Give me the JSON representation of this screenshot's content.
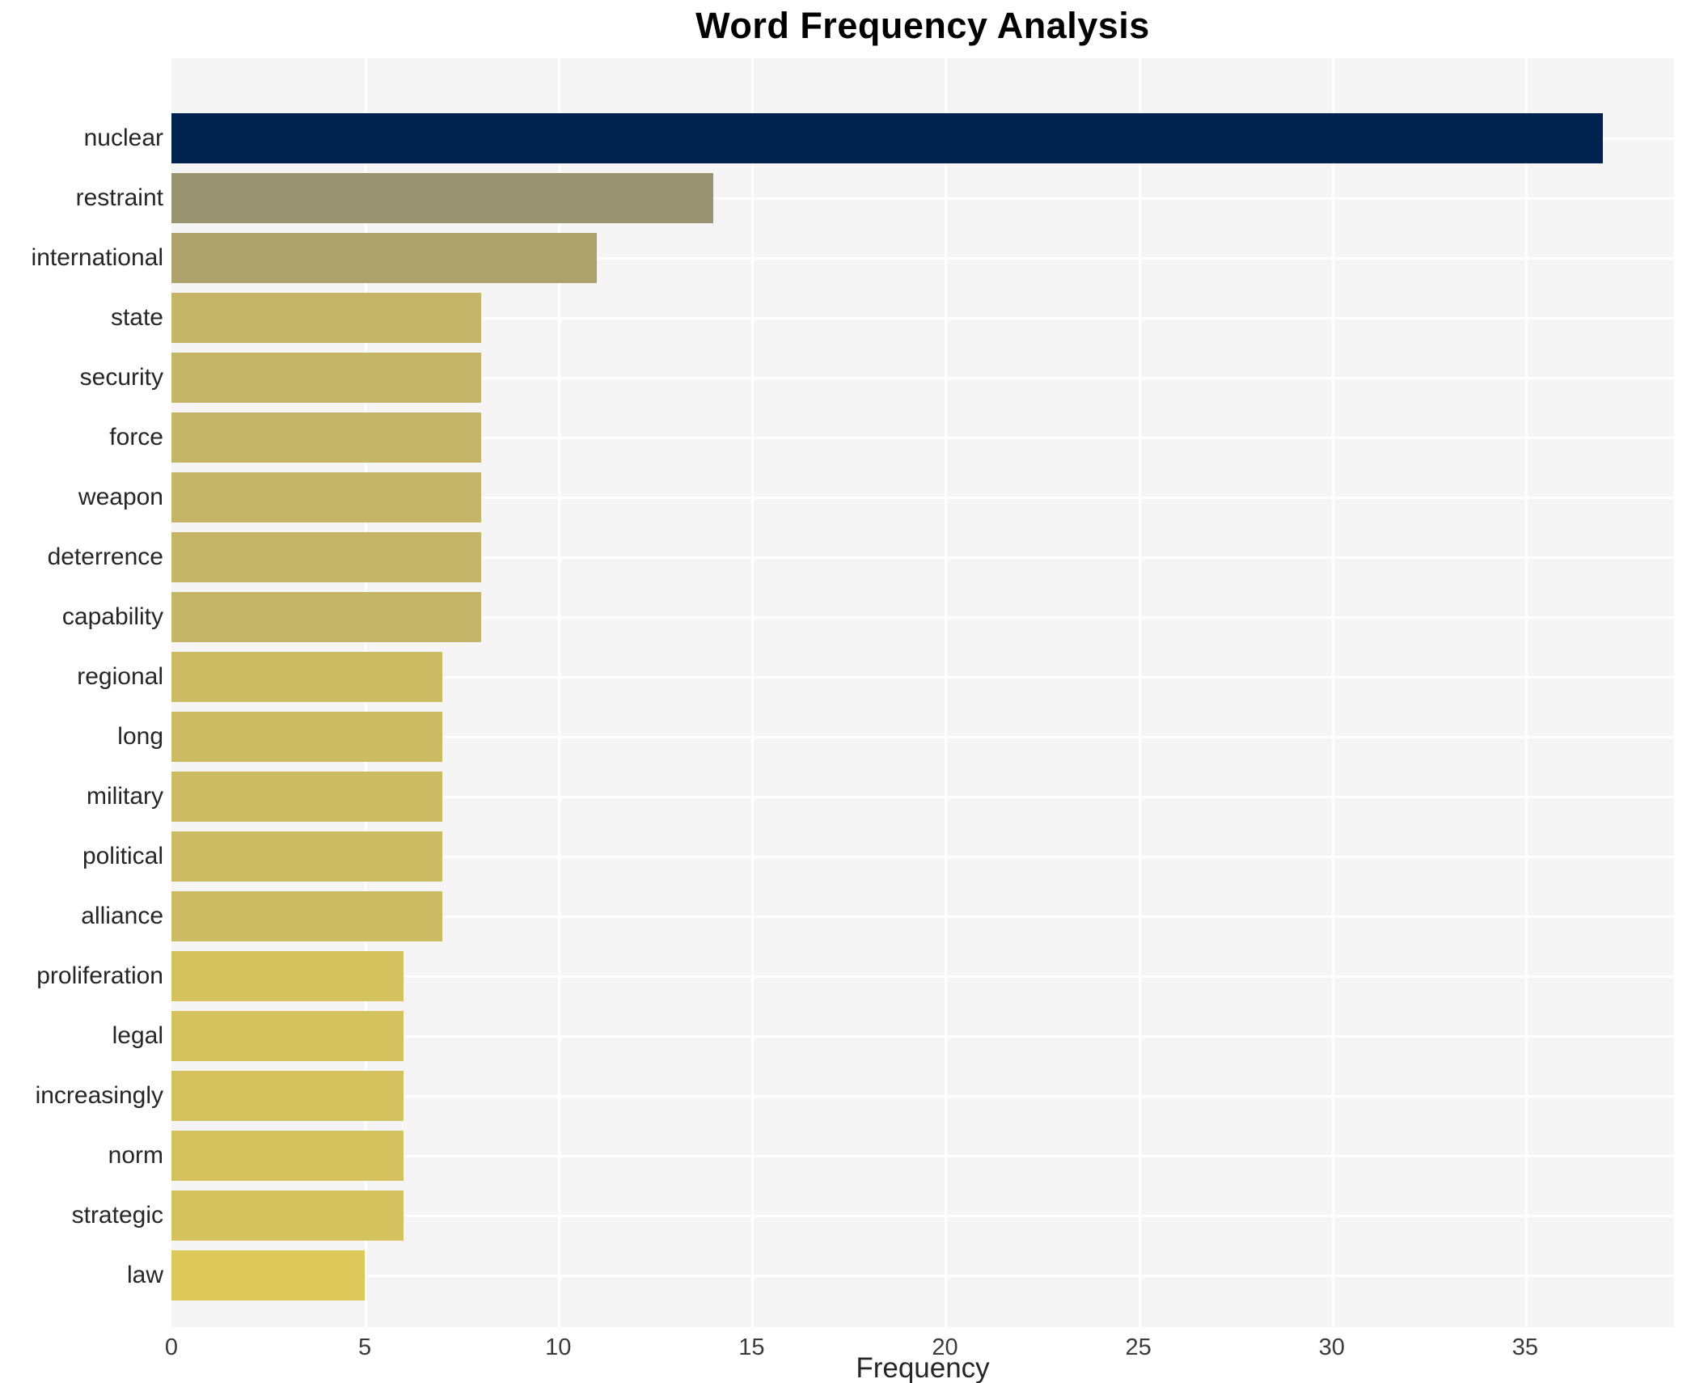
{
  "chart_data": {
    "type": "bar",
    "orientation": "horizontal",
    "title": "Word Frequency Analysis",
    "xlabel": "Frequency",
    "ylabel": "",
    "xlim": [
      0,
      38.85
    ],
    "xticks": [
      0,
      5,
      10,
      15,
      20,
      25,
      30,
      35
    ],
    "grid": true,
    "legend": "none",
    "categories": [
      "nuclear",
      "restraint",
      "international",
      "state",
      "security",
      "force",
      "weapon",
      "deterrence",
      "capability",
      "regional",
      "long",
      "military",
      "political",
      "alliance",
      "proliferation",
      "legal",
      "increasingly",
      "norm",
      "strategic",
      "law"
    ],
    "values": [
      37,
      14,
      11,
      8,
      8,
      8,
      8,
      8,
      8,
      7,
      7,
      7,
      7,
      7,
      6,
      6,
      6,
      6,
      6,
      5
    ],
    "bar_colors": [
      "#00224e",
      "#999371",
      "#ada26b",
      "#c5b568",
      "#c5b568",
      "#c5b568",
      "#c5b568",
      "#c5b568",
      "#c5b568",
      "#cdbb63",
      "#cdbb63",
      "#cdbb63",
      "#cdbb63",
      "#cdbb63",
      "#d4c25e",
      "#d4c25e",
      "#d4c25e",
      "#d4c25e",
      "#d4c25e",
      "#dcc95a"
    ],
    "colors": {
      "figure_bg": "#ffffff",
      "plot_bg": "#f5f5f6",
      "grid": "#ffffff",
      "title_text": "#000000",
      "label_text": "#262626",
      "tick_text": "#3b3b3b"
    }
  }
}
